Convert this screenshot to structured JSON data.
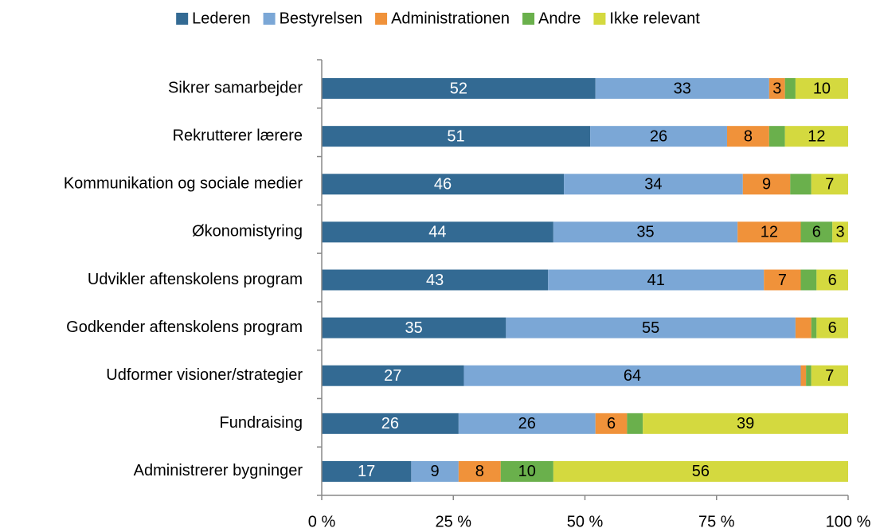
{
  "chart_data": {
    "type": "stacked-bar-horizontal",
    "categories": [
      "Sikrer samarbejder",
      "Rekrutterer lærere",
      "Kommunikation og sociale medier",
      "Økonomistyring",
      "Udvikler aftenskolens program",
      "Godkender aftenskolens program",
      "Udformer visioner/strategier",
      "Fundraising",
      "Administrerer bygninger"
    ],
    "series": [
      {
        "name": "Lederen",
        "color": "#336a93",
        "values": [
          52,
          51,
          46,
          44,
          43,
          35,
          27,
          26,
          17
        ]
      },
      {
        "name": "Bestyrelsen",
        "color": "#7ba7d6",
        "values": [
          33,
          26,
          34,
          35,
          41,
          55,
          64,
          26,
          9
        ]
      },
      {
        "name": "Administrationen",
        "color": "#f0923a",
        "values": [
          3,
          8,
          9,
          12,
          7,
          3,
          1,
          6,
          8
        ],
        "value_labels": [
          "3",
          "8",
          "9",
          "12",
          "7",
          null,
          null,
          "6",
          "8"
        ]
      },
      {
        "name": "Andre",
        "color": "#6ab04c",
        "values": [
          2,
          3,
          4,
          6,
          3,
          1,
          1,
          3,
          10
        ],
        "value_labels": [
          null,
          null,
          null,
          "6",
          null,
          null,
          null,
          null,
          "10"
        ]
      },
      {
        "name": "Ikke relevant",
        "color": "#d4d93f",
        "values": [
          10,
          12,
          7,
          3,
          6,
          6,
          7,
          39,
          56
        ]
      }
    ],
    "xlim": [
      0,
      100
    ],
    "xticks": [
      {
        "value": 0,
        "label": "0 %"
      },
      {
        "value": 25,
        "label": "25 %"
      },
      {
        "value": 50,
        "label": "50 %"
      },
      {
        "value": 75,
        "label": "75 %"
      },
      {
        "value": 100,
        "label": "100 %"
      }
    ],
    "legend": "top"
  }
}
